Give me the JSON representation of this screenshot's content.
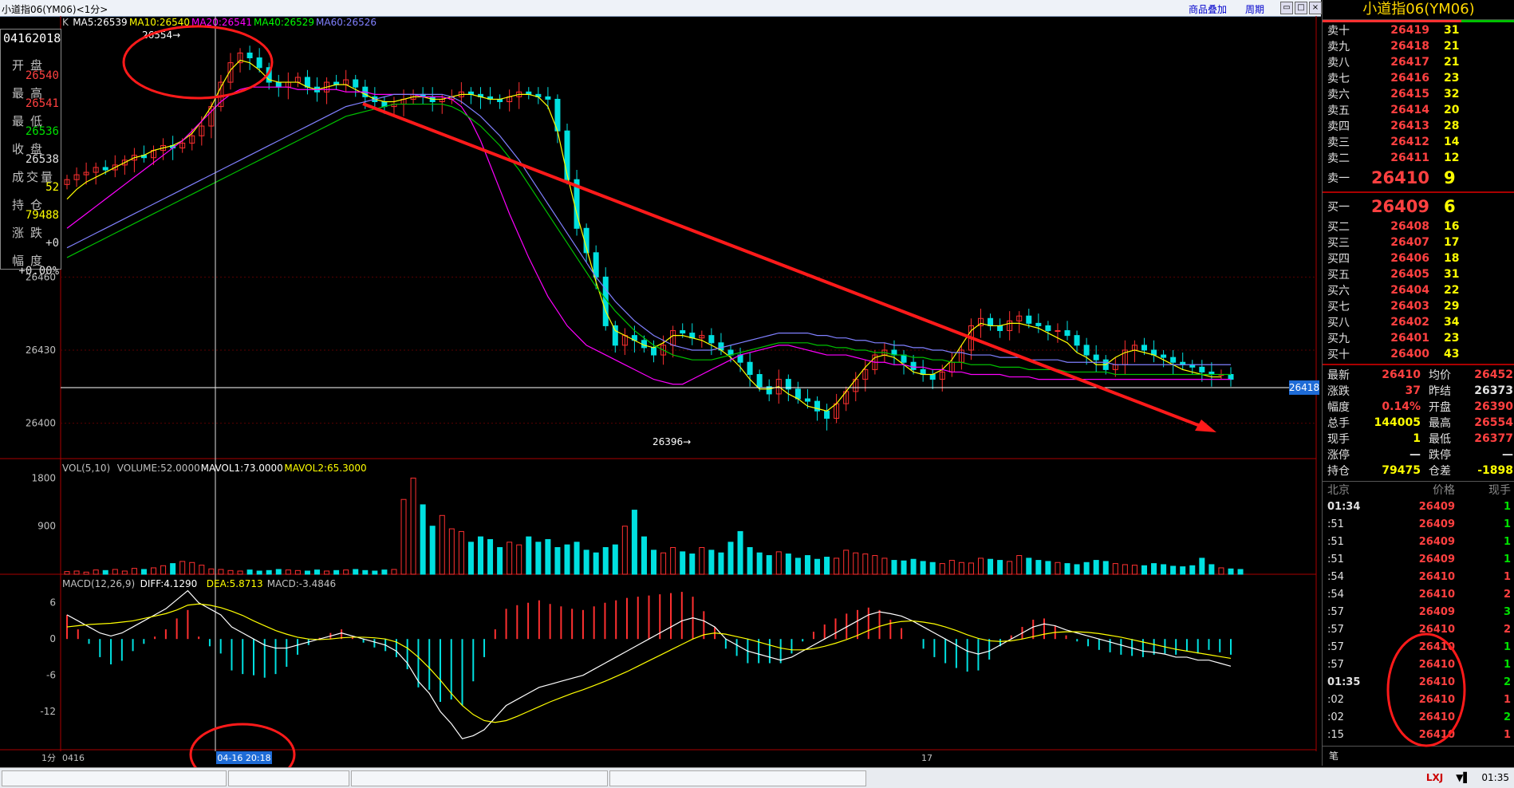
{
  "window": {
    "title": "小道指06(YM06)<1分>",
    "buttons": [
      "商品叠加",
      "周期"
    ]
  },
  "info_box": {
    "date": "04162018",
    "rows": [
      {
        "label": "开盘",
        "value": "26540",
        "color": "#ff4040"
      },
      {
        "label": "最高",
        "value": "26541",
        "color": "#ff4040"
      },
      {
        "label": "最低",
        "value": "26536",
        "color": "#00e000"
      },
      {
        "label": "收盘",
        "value": "26538",
        "color": "#e0e0e0"
      },
      {
        "label": "成交量",
        "value": "52",
        "color": "#ffff00"
      },
      {
        "label": "持仓",
        "value": "79488",
        "color": "#ffff00"
      },
      {
        "label": "涨跌",
        "value": "+0",
        "color": "#e0e0e0"
      },
      {
        "label": "幅度",
        "value": "+0.00%",
        "color": "#e0e0e0"
      }
    ]
  },
  "price_panel": {
    "legend": [
      {
        "text": "K",
        "color": "#c0c0c0"
      },
      {
        "text": "MA5:26539",
        "color": "#ffffff"
      },
      {
        "text": "MA10:26540",
        "color": "#ffff00"
      },
      {
        "text": "MA20:26541",
        "color": "#ff00ff"
      },
      {
        "text": "MA40:26529",
        "color": "#00ff00"
      },
      {
        "text": "MA60:26526",
        "color": "#8080ff"
      }
    ],
    "y_ticks": [
      "26460",
      "26430",
      "26400"
    ],
    "high_label": "26554",
    "low_label": "26396",
    "current_price_tag": "26418"
  },
  "volume_panel": {
    "legend": [
      {
        "text": "VOL(5,10)",
        "color": "#c0c0c0"
      },
      {
        "text": "VOLUME:52.0000",
        "color": "#c0c0c0"
      },
      {
        "text": "MAVOL1:73.0000",
        "color": "#ffffff"
      },
      {
        "text": "MAVOL2:65.3000",
        "color": "#ffff00"
      }
    ],
    "y_ticks": [
      "1800",
      "900"
    ]
  },
  "macd_panel": {
    "legend": [
      {
        "text": "MACD(12,26,9)",
        "color": "#c0c0c0"
      },
      {
        "text": "DIFF:4.1290",
        "color": "#ffffff"
      },
      {
        "text": "DEA:5.8713",
        "color": "#ffff00"
      },
      {
        "text": "MACD:-3.4846",
        "color": "#c0c0c0"
      }
    ],
    "y_ticks": [
      "6",
      "0",
      "-6",
      "-12"
    ]
  },
  "x_axis": {
    "period": "1分",
    "labels": [
      "0416",
      "17"
    ],
    "cursor_label": "04-16 20:18"
  },
  "chart_data": {
    "type": "candlestick",
    "price_series": {
      "close": [
        26500,
        26502,
        26503,
        26505,
        26504,
        26506,
        26508,
        26510,
        26509,
        26512,
        26514,
        26513,
        26515,
        26518,
        26522,
        26530,
        26540,
        26548,
        26552,
        26550,
        26546,
        26540,
        26538,
        26540,
        26542,
        26538,
        26536,
        26540,
        26539,
        26541,
        26538,
        26534,
        26532,
        26530,
        26531,
        26533,
        26535,
        26534,
        26532,
        26533,
        26534,
        26536,
        26535,
        26534,
        26533,
        26532,
        26534,
        26536,
        26535,
        26534,
        26533,
        26520,
        26500,
        26480,
        26470,
        26460,
        26440,
        26432,
        26436,
        26434,
        26431,
        26428,
        26432,
        26438,
        26437,
        26435,
        26436,
        26433,
        26430,
        26428,
        26425,
        26420,
        26415,
        26412,
        26418,
        26414,
        26410,
        26409,
        26405,
        26402,
        26408,
        26413,
        26418,
        26422,
        26428,
        26430,
        26428,
        26425,
        26422,
        26420,
        26418,
        26421,
        26425,
        26430,
        26440,
        26443,
        26440,
        26438,
        26442,
        26444,
        26441,
        26440,
        26438,
        26438,
        26436,
        26432,
        26428,
        26426,
        26422,
        26424,
        26430,
        26432,
        26430,
        26428,
        26427,
        26425,
        26424,
        26423,
        26421,
        26420,
        26420,
        26418
      ],
      "ma5": [
        26492,
        26496,
        26499,
        26501,
        26503,
        26505,
        26507,
        26509,
        26510,
        26512,
        26513,
        26514,
        26516,
        26519,
        26524,
        26530,
        26538,
        26545,
        26549,
        26548,
        26545,
        26541,
        26540,
        26540,
        26540,
        26538,
        26537,
        26538,
        26539,
        26539,
        26537,
        26535,
        26533,
        26532,
        26532,
        26533,
        26534,
        26534,
        26533,
        26533,
        26534,
        26535,
        26535,
        26534,
        26533,
        26533,
        26534,
        26535,
        26535,
        26534,
        26530,
        26520,
        26502,
        26486,
        26472,
        26458,
        26446,
        26438,
        26436,
        26434,
        26432,
        26431,
        26433,
        26436,
        26436,
        26435,
        26434,
        26432,
        26430,
        26427,
        26423,
        26418,
        26414,
        26414,
        26415,
        26412,
        26410,
        26407,
        26406,
        26405,
        26408,
        26413,
        26418,
        26423,
        26427,
        26428,
        26427,
        26424,
        26421,
        26420,
        26420,
        26422,
        26426,
        26432,
        26438,
        26441,
        26440,
        26440,
        26441,
        26441,
        26440,
        26439,
        26437,
        26435,
        26433,
        26429,
        26427,
        26424,
        26424,
        26427,
        26429,
        26430,
        26429,
        26428,
        26426,
        26424,
        26422,
        26421,
        26420,
        26419,
        26419
      ],
      "ma20": [
        26480,
        26483,
        26486,
        26489,
        26492,
        26495,
        26498,
        26501,
        26504,
        26507,
        26510,
        26513,
        26516,
        26520,
        26524,
        26528,
        26532,
        26535,
        26537,
        26538,
        26538,
        26538,
        26538,
        26538,
        26537,
        26537,
        26537,
        26537,
        26537,
        26536,
        26536,
        26536,
        26535,
        26535,
        26535,
        26535,
        26535,
        26534,
        26534,
        26534,
        26533,
        26530,
        26524,
        26516,
        26506,
        26496,
        26486,
        26477,
        26468,
        26460,
        26452,
        26446,
        26440,
        26436,
        26432,
        26430,
        26428,
        26426,
        26424,
        26422,
        26420,
        26418,
        26417,
        26416,
        26416,
        26418,
        26420,
        26422,
        26424,
        26426,
        26428,
        26429,
        26430,
        26431,
        26432,
        26432,
        26431,
        26430,
        26429,
        26428,
        26428,
        26428,
        26427,
        26426,
        26425,
        26425,
        26424,
        26424,
        26423,
        26423,
        26422,
        26422,
        26421,
        26421,
        26420,
        26420,
        26420,
        26420,
        26419,
        26419,
        26419,
        26418,
        26418,
        26418,
        26418,
        26418,
        26418,
        26418,
        26418,
        26418,
        26418,
        26418,
        26418,
        26418,
        26418,
        26418,
        26418,
        26418,
        26418,
        26418,
        26418,
        26418
      ],
      "ma60": [
        26468,
        26470,
        26472,
        26474,
        26476,
        26478,
        26480,
        26482,
        26484,
        26486,
        26488,
        26490,
        26492,
        26494,
        26496,
        26498,
        26500,
        26502,
        26504,
        26506,
        26508,
        26510,
        26512,
        26514,
        26516,
        26518,
        26520,
        26522,
        26524,
        26526,
        26527,
        26528,
        26529,
        26530,
        26531,
        26531,
        26531,
        26531,
        26531,
        26531,
        26530,
        26528,
        26525,
        26522,
        26518,
        26514,
        26509,
        26504,
        26498,
        26492,
        26486,
        26480,
        26474,
        26468,
        26462,
        26456,
        26451,
        26446,
        26442,
        26438,
        26435,
        26432,
        26430,
        26428,
        26427,
        26426,
        26426,
        26426,
        26427,
        26428,
        26429,
        26430,
        26431,
        26432,
        26433,
        26433,
        26433,
        26433,
        26432,
        26432,
        26431,
        26431,
        26430,
        26430,
        26429,
        26429,
        26428,
        26428,
        26427,
        26427,
        26426,
        26426,
        26425,
        26425,
        26424,
        26424,
        26424,
        26423,
        26423,
        26423,
        26422,
        26422,
        26422,
        26422,
        26421,
        26421,
        26421,
        26421,
        26421,
        26420,
        26420,
        26420,
        26420,
        26420,
        26420,
        26420,
        26420,
        26420,
        26420,
        26420,
        26420,
        26420
      ]
    },
    "volume": [
      50,
      60,
      40,
      80,
      70,
      90,
      60,
      110,
      90,
      120,
      160,
      200,
      240,
      220,
      170,
      100,
      90,
      70,
      60,
      80,
      60,
      70,
      90,
      80,
      70,
      60,
      80,
      60,
      70,
      80,
      90,
      70,
      60,
      80,
      90,
      1400,
      1800,
      1300,
      900,
      1100,
      850,
      800,
      600,
      700,
      650,
      500,
      600,
      550,
      700,
      600,
      650,
      500,
      550,
      600,
      450,
      400,
      500,
      550,
      900,
      1200,
      700,
      450,
      400,
      500,
      420,
      380,
      500,
      450,
      400,
      600,
      800,
      500,
      400,
      350,
      420,
      380,
      300,
      350,
      280,
      320,
      300,
      450,
      400,
      380,
      350,
      300,
      260,
      250,
      280,
      240,
      220,
      200,
      260,
      220,
      210,
      300,
      280,
      260,
      240,
      350,
      300,
      260,
      240,
      220,
      200,
      180,
      220,
      260,
      240,
      200,
      180,
      170,
      160,
      200,
      180,
      150,
      140,
      160,
      300,
      180,
      120,
      100,
      90
    ],
    "macd_diff": [
      4,
      3,
      2,
      1,
      0.5,
      1,
      2,
      3,
      4,
      5,
      6.5,
      8,
      6,
      5,
      4,
      2,
      1,
      0,
      -1,
      -1.5,
      -1.5,
      -1,
      -0.5,
      0,
      0.5,
      1,
      0.5,
      0,
      -0.5,
      -1,
      -2,
      -4,
      -7,
      -9,
      -12,
      -14,
      -16.5,
      -16,
      -15,
      -13,
      -11,
      -10,
      -9,
      -8,
      -7.5,
      -7,
      -6.5,
      -6,
      -5,
      -4,
      -3,
      -2,
      -1,
      0,
      1,
      2,
      3,
      3.5,
      3,
      2,
      0,
      -1,
      -2,
      -2.5,
      -3,
      -3.5,
      -3,
      -2,
      -1,
      0,
      1,
      2,
      3,
      4,
      4.5,
      4.2,
      3.8,
      3,
      2,
      1,
      0,
      -1,
      -2,
      -2.5,
      -2,
      -1,
      0,
      1,
      2,
      2.5,
      2.2,
      1.5,
      1,
      0.5,
      0,
      -0.5,
      -1,
      -1.5,
      -2,
      -2.2,
      -2.5,
      -3,
      -3,
      -3.5,
      -3.5,
      -4,
      -4.5
    ],
    "macd_dea": [
      2,
      2.2,
      2.4,
      2.5,
      2.6,
      2.8,
      3,
      3.4,
      3.8,
      4.2,
      4.8,
      5.6,
      5.8,
      5.6,
      5.2,
      4.6,
      3.9,
      3,
      2.2,
      1.4,
      0.8,
      0.3,
      0,
      -0.1,
      0,
      0.2,
      0.3,
      0.3,
      0.2,
      0,
      -0.5,
      -1.5,
      -3,
      -4.8,
      -6.8,
      -9,
      -11,
      -12.5,
      -13.5,
      -13.8,
      -13.5,
      -12.8,
      -12,
      -11.2,
      -10.4,
      -9.7,
      -9,
      -8.4,
      -7.7,
      -7,
      -6.2,
      -5.4,
      -4.5,
      -3.6,
      -2.7,
      -1.8,
      -0.9,
      0,
      0.7,
      1,
      0.8,
      0.4,
      0,
      -0.5,
      -1,
      -1.5,
      -1.8,
      -1.8,
      -1.6,
      -1.2,
      -0.7,
      -0.1,
      0.6,
      1.4,
      2.1,
      2.6,
      2.9,
      3,
      2.8,
      2.5,
      2,
      1.4,
      0.7,
      0.1,
      -0.3,
      -0.4,
      -0.3,
      0,
      0.4,
      0.8,
      1.1,
      1.2,
      1.2,
      1.1,
      0.9,
      0.6,
      0.3,
      -0.1,
      -0.5,
      -0.9,
      -1.3,
      -1.7,
      -2,
      -2.3,
      -2.6,
      -2.9,
      -3.2
    ],
    "ranges": {
      "price": [
        26392,
        26560
      ],
      "volume": [
        0,
        2000
      ],
      "macd": [
        -17,
        9
      ]
    }
  },
  "order_book": {
    "title": "小道指06(YM06)",
    "asks": [
      {
        "label": "卖十",
        "price": "26419",
        "vol": "31"
      },
      {
        "label": "卖九",
        "price": "26418",
        "vol": "21"
      },
      {
        "label": "卖八",
        "price": "26417",
        "vol": "21"
      },
      {
        "label": "卖七",
        "price": "26416",
        "vol": "23"
      },
      {
        "label": "卖六",
        "price": "26415",
        "vol": "32"
      },
      {
        "label": "卖五",
        "price": "26414",
        "vol": "20"
      },
      {
        "label": "卖四",
        "price": "26413",
        "vol": "28"
      },
      {
        "label": "卖三",
        "price": "26412",
        "vol": "14"
      },
      {
        "label": "卖二",
        "price": "26411",
        "vol": "12"
      },
      {
        "label": "卖一",
        "price": "26410",
        "vol": "9",
        "big": true
      }
    ],
    "bids": [
      {
        "label": "买一",
        "price": "26409",
        "vol": "6",
        "big": true
      },
      {
        "label": "买二",
        "price": "26408",
        "vol": "16"
      },
      {
        "label": "买三",
        "price": "26407",
        "vol": "17"
      },
      {
        "label": "买四",
        "price": "26406",
        "vol": "18"
      },
      {
        "label": "买五",
        "price": "26405",
        "vol": "31"
      },
      {
        "label": "买六",
        "price": "26404",
        "vol": "22"
      },
      {
        "label": "买七",
        "price": "26403",
        "vol": "29"
      },
      {
        "label": "买八",
        "price": "26402",
        "vol": "34"
      },
      {
        "label": "买九",
        "price": "26401",
        "vol": "23"
      },
      {
        "label": "买十",
        "price": "26400",
        "vol": "43"
      }
    ],
    "stats": [
      {
        "k1": "最新",
        "v1": "26410",
        "c1": "#ff4040",
        "k2": "均价",
        "v2": "26452",
        "c2": "#ff4040"
      },
      {
        "k1": "涨跌",
        "v1": "37",
        "c1": "#ff4040",
        "k2": "昨结",
        "v2": "26373",
        "c2": "#e0e0e0"
      },
      {
        "k1": "幅度",
        "v1": "0.14%",
        "c1": "#ff4040",
        "k2": "开盘",
        "v2": "26390",
        "c2": "#ff4040"
      },
      {
        "k1": "总手",
        "v1": "144005",
        "c1": "#ffff00",
        "k2": "最高",
        "v2": "26554",
        "c2": "#ff4040"
      },
      {
        "k1": "现手",
        "v1": "1",
        "c1": "#ffff00",
        "k2": "最低",
        "v2": "26377",
        "c2": "#ff4040"
      },
      {
        "k1": "涨停",
        "v1": "—",
        "c1": "#e0e0e0",
        "k2": "跌停",
        "v2": "—",
        "c2": "#e0e0e0"
      },
      {
        "k1": "持仓",
        "v1": "79475",
        "c1": "#ffff00",
        "k2": "仓差",
        "v2": "-1898",
        "c2": "#ffff00"
      }
    ],
    "ticks_header": {
      "time": "北京",
      "price": "价格",
      "vol": "现手"
    },
    "ticks": [
      {
        "time": "01:34",
        "price": "26409",
        "vol": "1",
        "red": false
      },
      {
        "time": ":51",
        "price": "26409",
        "vol": "1",
        "red": false
      },
      {
        "time": ":51",
        "price": "26409",
        "vol": "1",
        "red": false
      },
      {
        "time": ":51",
        "price": "26409",
        "vol": "1",
        "red": false
      },
      {
        "time": ":54",
        "price": "26410",
        "vol": "1",
        "red": true
      },
      {
        "time": ":54",
        "price": "26410",
        "vol": "2",
        "red": true
      },
      {
        "time": ":57",
        "price": "26409",
        "vol": "3",
        "red": false
      },
      {
        "time": ":57",
        "price": "26410",
        "vol": "2",
        "red": true
      },
      {
        "time": ":57",
        "price": "26410",
        "vol": "1",
        "red": false
      },
      {
        "time": ":57",
        "price": "26410",
        "vol": "1",
        "red": false
      },
      {
        "time": "01:35",
        "price": "26410",
        "vol": "2",
        "red": false
      },
      {
        "time": ":02",
        "price": "26410",
        "vol": "1",
        "red": true
      },
      {
        "time": ":02",
        "price": "26410",
        "vol": "2",
        "red": false
      },
      {
        "time": ":15",
        "price": "26410",
        "vol": "1",
        "red": true
      }
    ],
    "bottom_tab": "笔"
  },
  "status_bar": {
    "logo": "LXJ",
    "clock": "01:35"
  },
  "colors": {
    "up": "#ff3030",
    "down": "#00e0e0",
    "grid": "#8b0000",
    "trendline": "#ff1a1a"
  }
}
